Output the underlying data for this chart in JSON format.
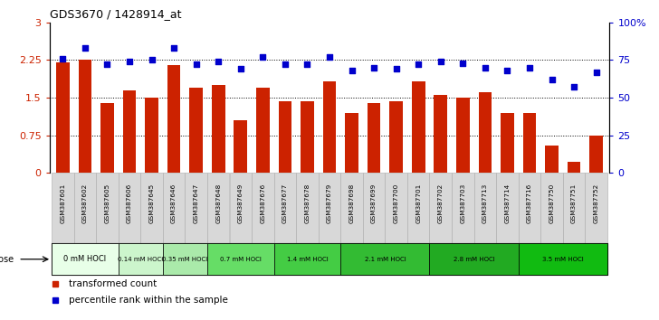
{
  "title": "GDS3670 / 1428914_at",
  "samples": [
    "GSM387601",
    "GSM387602",
    "GSM387605",
    "GSM387606",
    "GSM387645",
    "GSM387646",
    "GSM387647",
    "GSM387648",
    "GSM387649",
    "GSM387676",
    "GSM387677",
    "GSM387678",
    "GSM387679",
    "GSM387698",
    "GSM387699",
    "GSM387700",
    "GSM387701",
    "GSM387702",
    "GSM387703",
    "GSM387713",
    "GSM387714",
    "GSM387716",
    "GSM387750",
    "GSM387751",
    "GSM387752"
  ],
  "bar_values": [
    2.2,
    2.25,
    1.4,
    1.65,
    1.5,
    2.15,
    1.7,
    1.75,
    1.05,
    1.7,
    1.42,
    1.42,
    1.83,
    1.2,
    1.4,
    1.42,
    1.83,
    1.55,
    1.5,
    1.6,
    1.2,
    1.2,
    0.55,
    0.22,
    0.75
  ],
  "percentile_values": [
    76,
    83,
    72,
    74,
    75,
    83,
    72,
    74,
    69,
    77,
    72,
    72,
    77,
    68,
    70,
    69,
    72,
    74,
    73,
    70,
    68,
    70,
    62,
    57,
    67
  ],
  "dose_groups": [
    {
      "label": "0 mM HOCl",
      "start": 0,
      "end": 3,
      "color": "#e8ffe8"
    },
    {
      "label": "0.14 mM HOCl",
      "start": 3,
      "end": 5,
      "color": "#ccf5cc"
    },
    {
      "label": "0.35 mM HOCl",
      "start": 5,
      "end": 7,
      "color": "#aaeaaa"
    },
    {
      "label": "0.7 mM HOCl",
      "start": 7,
      "end": 10,
      "color": "#66dd66"
    },
    {
      "label": "1.4 mM HOCl",
      "start": 10,
      "end": 13,
      "color": "#44cc44"
    },
    {
      "label": "2.1 mM HOCl",
      "start": 13,
      "end": 17,
      "color": "#33bb33"
    },
    {
      "label": "2.8 mM HOCl",
      "start": 17,
      "end": 21,
      "color": "#22aa22"
    },
    {
      "label": "3.5 mM HOCl",
      "start": 21,
      "end": 25,
      "color": "#11bb11"
    }
  ],
  "bar_color": "#cc2200",
  "scatter_color": "#0000cc",
  "ylim_left": [
    0,
    3
  ],
  "ylim_right": [
    0,
    100
  ],
  "yticks_left": [
    0,
    0.75,
    1.5,
    2.25,
    3
  ],
  "yticks_right": [
    0,
    25,
    50,
    75,
    100
  ],
  "ytick_labels_right": [
    "0",
    "25",
    "50",
    "75",
    "100%"
  ],
  "sample_cell_color": "#d8d8d8",
  "sample_cell_edge": "#aaaaaa",
  "dose_label_fontsize": 7,
  "bg_color": "#ffffff"
}
